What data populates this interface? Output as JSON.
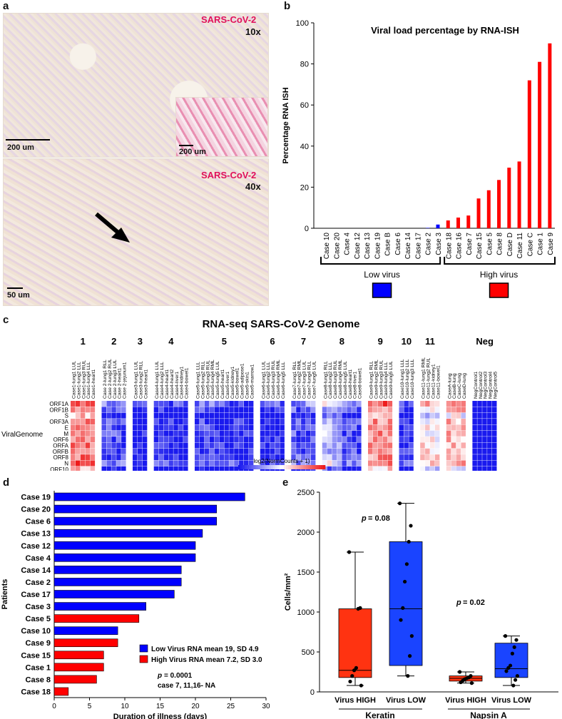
{
  "panel_a": {
    "label": "a",
    "top_image": {
      "stain": "SARS-CoV-2",
      "mag": "10x",
      "scale": "200 um",
      "inset_scale": "200 um"
    },
    "bottom_image": {
      "stain": "SARS-CoV-2",
      "mag": "40x",
      "scale": "50 um"
    }
  },
  "panel_b": {
    "label": "b",
    "chart_data": {
      "type": "bar",
      "title": "Viral load percentage by RNA-ISH",
      "ylabel": "Percentage RNA ISH",
      "ylim": [
        0,
        100
      ],
      "yticks": [
        0,
        20,
        40,
        60,
        80,
        100
      ],
      "categories": [
        "Case 10",
        "Case 20",
        "Case 4",
        "Case 12",
        "Case 13",
        "Case 19",
        "Case B",
        "Case 6",
        "Case 14",
        "Case 17",
        "Case 2",
        "Case 3",
        "Case 18",
        "Case 16",
        "Case 7",
        "Case 15",
        "Case 5",
        "Case 8",
        "Case D",
        "Case 11",
        "Case C",
        "Case 1",
        "Case 9"
      ],
      "values": [
        0,
        0,
        0,
        0,
        0,
        0,
        0,
        0,
        0,
        0,
        0.2,
        1.8,
        3.8,
        5.2,
        6.2,
        14.5,
        18.5,
        23.5,
        29.5,
        32.5,
        72,
        81,
        90
      ],
      "groups": [
        {
          "name": "Low virus",
          "count": 12,
          "color": "#0000ff"
        },
        {
          "name": "High virus",
          "count": 11,
          "color": "#ff0000"
        }
      ]
    }
  },
  "panel_c": {
    "label": "c",
    "title": "RNA-seq SARS-CoV-2 Genome",
    "row_group_label": "ViralGenome",
    "genes": [
      "ORF1A",
      "ORF1B",
      "S",
      "ORF3A",
      "E",
      "M",
      "ORF6",
      "ORFA",
      "ORFB",
      "ORF8",
      "N",
      "ORF10"
    ],
    "legend_title": "log2(NormCounts + 1)",
    "legend_ticks": [
      "−2",
      "−1",
      "0",
      "1",
      "2"
    ],
    "colors": {
      "low": "#1a1aee",
      "mid": "#ffffff",
      "high": "#ee1a1a"
    },
    "groups": [
      {
        "label": "1",
        "samples": [
          "Case1-lung1 LUL",
          "Case1-lung2 LLL",
          "Case1-lung3 RUL",
          "Case1-lung4 LLL",
          "Case1-heart1"
        ],
        "level": 0.8
      },
      {
        "label": "2",
        "samples": [
          "Case 2-lung1 RLL",
          "Case 2-lung2 RUL",
          "Case 2-lung3 LUL",
          "Case 2-heart1",
          "Case 2-jejunum1"
        ],
        "level": 0.12
      },
      {
        "label": "3",
        "samples": [
          "Case3-lung1 LUL",
          "Case3-lung2 RLL",
          "Case3-heart1"
        ],
        "level": 0.02
      },
      {
        "label": "4",
        "samples": [
          "Case4-lung1 LUL",
          "Case4-lung2 LLL",
          "Case4-heart1",
          "Case4-heart2",
          "Case4-liver1",
          "Case4-kidney1",
          "Case4-bowel1"
        ],
        "level": 0.03
      },
      {
        "label": "5",
        "samples": [
          "Case5-lung1 LLL",
          "Case5-lung2 RLL",
          "Case5-lung3 RUL",
          "Case5-lung4 RML",
          "Case5-lung5 LUL",
          "Case5-heart1",
          "Case5-liver1",
          "Case5-kidney1",
          "Case5-bowel1",
          "Case5-adipose1",
          "Case5-skin1",
          "Case5-marrow1"
        ],
        "level": 0.1
      },
      {
        "label": "6",
        "samples": [
          "Case6-lung1 LUL",
          "Case6-lung2 LLL",
          "Case6-lung3 RUL",
          "Case6-lung4 RML",
          "Case6-lung5 LLL"
        ],
        "level": 0.03
      },
      {
        "label": "7",
        "samples": [
          "Case7-lung1 RLL",
          "Case7-lung2 RML",
          "Case7-lung3 LUL",
          "Case7-lung4 RLL",
          "Case7-lung5 LUL"
        ],
        "level": 0.15
      },
      {
        "label": "8",
        "samples": [
          "Case8-lung1 RLL",
          "Case8-lung2 LLL",
          "Case8-lung3 RUL",
          "Case8-lung4 RML",
          "Case8-lung5 LUL",
          "Case8-heart1",
          "Case8-liver1",
          "Case8-bowel1"
        ],
        "level": 0.35
      },
      {
        "label": "9",
        "samples": [
          "Case9-lung1 RLL",
          "Case9-lung2 RML",
          "Case9-lung3 RUL",
          "Case9-lung4 LLL",
          "Case9-lung5 LUL"
        ],
        "level": 0.75
      },
      {
        "label": "10",
        "samples": [
          "Case10-lung1 LLL",
          "Case10-lung2 LLL",
          "Case10-lung3 LLL"
        ],
        "level": 0.05
      },
      {
        "label": "11",
        "samples": [
          "Case11-lung1 RML",
          "Case11-lung2 RUL",
          "Case11-kidney1",
          "Case11-bowel1"
        ],
        "level": 0.55
      },
      {
        "label": "",
        "samples": [
          "CaseA-lung",
          "CaseB-lung",
          "CaseC-lung",
          "CaseD-lung"
        ],
        "level": 0.65
      },
      {
        "label": "Neg",
        "samples": [
          "NegControl1",
          "NegControl2",
          "NegControl3",
          "NegControl4",
          "NegControl5"
        ],
        "level": 0
      }
    ]
  },
  "panel_d": {
    "label": "d",
    "chart_data": {
      "type": "bar",
      "orientation": "horizontal",
      "ylabel": "Patients",
      "xlabel": "Duration of illness (days)",
      "xlim": [
        0,
        30
      ],
      "xticks": [
        0,
        5,
        10,
        15,
        20,
        25,
        30
      ],
      "categories": [
        "Case 19",
        "Case 20",
        "Case 6",
        "Case 13",
        "Case 12",
        "Case 4",
        "Case 14",
        "Case 2",
        "Case 17",
        "Case 3",
        "Case 5",
        "Case 10",
        "Case 9",
        "Case 15",
        "Case 1",
        "Case 8",
        "Case 18"
      ],
      "values": [
        27,
        23,
        23,
        21,
        20,
        20,
        18,
        18,
        17,
        13,
        12,
        9,
        9,
        7,
        7,
        6,
        2
      ],
      "groups": [
        "low",
        "low",
        "low",
        "low",
        "low",
        "low",
        "low",
        "low",
        "low",
        "low",
        "high",
        "low",
        "high",
        "high",
        "high",
        "high",
        "high"
      ],
      "colors": {
        "low": "#0000ff",
        "high": "#ff0000"
      },
      "legend": [
        {
          "text": "Low Virus RNA mean 19, SD 4.9",
          "color": "#0000ff"
        },
        {
          "text": "High Virus RNA mean 7.2, SD 3.0",
          "color": "#ff0000"
        }
      ],
      "annotation_p": "p",
      "annotation_pval": "= 0.0001",
      "annotation_na": "case 7, 11,16- NA"
    }
  },
  "panel_e": {
    "label": "e",
    "chart_data": {
      "type": "box",
      "ylabel": "Cells/mm²",
      "ylim": [
        0,
        2500
      ],
      "yticks": [
        0,
        500,
        1000,
        1500,
        2000,
        2500
      ],
      "boxes": [
        {
          "name": "Virus HIGH",
          "group": "Keratin",
          "color": "#ff3311",
          "min": 80,
          "q1": 180,
          "median": 270,
          "q3": 1040,
          "max": 1750,
          "points": [
            1750,
            1050,
            1040,
            300,
            270,
            200,
            130,
            80
          ]
        },
        {
          "name": "Virus LOW",
          "group": "Keratin",
          "color": "#1a44ff",
          "min": 200,
          "q1": 330,
          "median": 1040,
          "q3": 1880,
          "max": 2360,
          "points": [
            2360,
            2080,
            1880,
            1600,
            1380,
            1050,
            900,
            700,
            450,
            200
          ]
        },
        {
          "name": "Virus  HIGH",
          "group": "Napsin A",
          "color": "#ff3311",
          "min": 110,
          "q1": 135,
          "median": 170,
          "q3": 200,
          "max": 250,
          "points": [
            250,
            200,
            180,
            170,
            160,
            140,
            120,
            110
          ]
        },
        {
          "name": "Virus LOW",
          "group": "Napsin A",
          "color": "#1a44ff",
          "min": 80,
          "q1": 180,
          "median": 290,
          "q3": 610,
          "max": 700,
          "points": [
            700,
            650,
            560,
            480,
            330,
            300,
            260,
            200,
            150,
            80
          ]
        }
      ],
      "group_labels": [
        "Keratin",
        "Napsin A"
      ],
      "pvalues": [
        {
          "p": "p",
          "text": "= 0.08"
        },
        {
          "p": "p",
          "text": "= 0.02"
        }
      ]
    }
  }
}
